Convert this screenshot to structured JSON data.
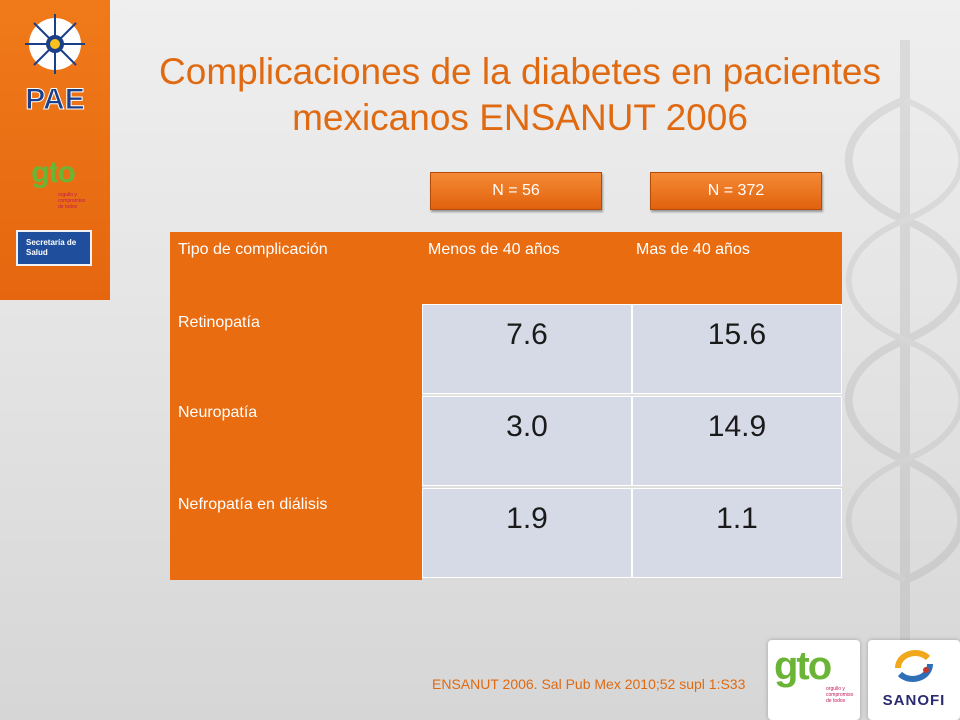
{
  "title": "Complicaciones de la diabetes en pacientes mexicanos ENSANUT 2006",
  "logos": {
    "pae": "PAE",
    "gto": "gto",
    "gto_tagline": "orgullo y compromiso de todos",
    "secretaria": "Secretaría de Salud",
    "sanofi": "SANOFI"
  },
  "sample_sizes": [
    "N = 56",
    "N = 372"
  ],
  "table": {
    "headers": [
      "Tipo de complicación",
      "Menos de 40 años",
      "Mas de 40 años"
    ],
    "rows": [
      {
        "label": "Retinopatía",
        "under40": "7.6",
        "over40": "15.6"
      },
      {
        "label": "Neuropatía",
        "under40": "3.0",
        "over40": "14.9"
      },
      {
        "label": "Nefropatía en diálisis",
        "under40": "1.9",
        "over40": "1.1"
      }
    ]
  },
  "source": "ENSANUT 2006. Sal Pub Mex 2010;52 supl 1:S33",
  "colors": {
    "accent": "#e96c10",
    "cell": "#d6dae6",
    "title": "#e06a12"
  }
}
